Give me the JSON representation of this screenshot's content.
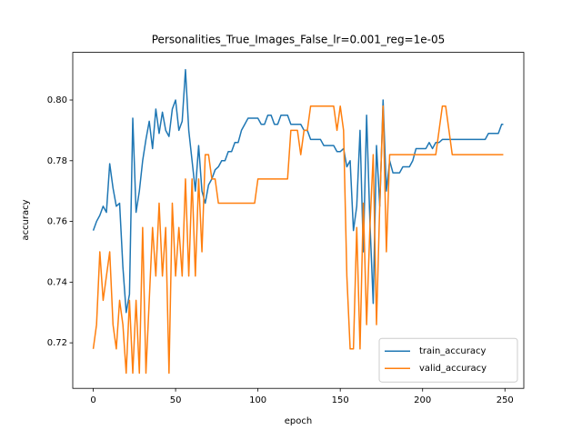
{
  "chart_data": {
    "type": "line",
    "title": "Personalities_True_Images_False_lr=0.001_reg=1e-05",
    "x_label": "epoch",
    "y_label": "accuracy",
    "x": [
      0,
      2,
      4,
      6,
      8,
      10,
      12,
      14,
      16,
      18,
      20,
      22,
      24,
      26,
      28,
      30,
      32,
      34,
      36,
      38,
      40,
      42,
      44,
      46,
      48,
      50,
      52,
      54,
      56,
      58,
      60,
      62,
      64,
      66,
      68,
      70,
      72,
      74,
      76,
      78,
      80,
      82,
      84,
      86,
      88,
      90,
      92,
      94,
      96,
      98,
      100,
      102,
      104,
      106,
      108,
      110,
      112,
      114,
      116,
      118,
      120,
      122,
      124,
      126,
      128,
      130,
      132,
      134,
      136,
      138,
      140,
      142,
      144,
      146,
      148,
      150,
      152,
      154,
      156,
      158,
      160,
      162,
      164,
      166,
      168,
      170,
      172,
      174,
      176,
      178,
      180,
      182,
      184,
      186,
      188,
      190,
      192,
      194,
      196,
      198,
      200,
      202,
      204,
      206,
      208,
      210,
      212,
      214,
      216,
      218,
      220,
      222,
      224,
      226,
      228,
      230,
      232,
      234,
      236,
      238,
      240,
      242,
      244,
      246,
      248,
      249
    ],
    "series": [
      {
        "name": "train_accuracy",
        "color": "#1f77b4",
        "values": [
          0.757,
          0.76,
          0.762,
          0.765,
          0.763,
          0.779,
          0.771,
          0.765,
          0.766,
          0.745,
          0.73,
          0.736,
          0.794,
          0.763,
          0.77,
          0.78,
          0.787,
          0.793,
          0.784,
          0.797,
          0.789,
          0.796,
          0.79,
          0.788,
          0.797,
          0.8,
          0.79,
          0.793,
          0.81,
          0.79,
          0.78,
          0.77,
          0.785,
          0.77,
          0.766,
          0.772,
          0.774,
          0.777,
          0.778,
          0.78,
          0.78,
          0.783,
          0.783,
          0.786,
          0.786,
          0.79,
          0.792,
          0.794,
          0.794,
          0.794,
          0.794,
          0.792,
          0.792,
          0.795,
          0.795,
          0.792,
          0.792,
          0.795,
          0.795,
          0.795,
          0.792,
          0.792,
          0.792,
          0.792,
          0.79,
          0.79,
          0.787,
          0.787,
          0.787,
          0.787,
          0.785,
          0.785,
          0.785,
          0.785,
          0.783,
          0.783,
          0.784,
          0.778,
          0.78,
          0.757,
          0.765,
          0.79,
          0.75,
          0.795,
          0.76,
          0.733,
          0.785,
          0.765,
          0.8,
          0.77,
          0.78,
          0.776,
          0.776,
          0.776,
          0.778,
          0.778,
          0.778,
          0.78,
          0.784,
          0.784,
          0.784,
          0.784,
          0.786,
          0.784,
          0.786,
          0.786,
          0.787,
          0.787,
          0.787,
          0.787,
          0.787,
          0.787,
          0.787,
          0.787,
          0.787,
          0.787,
          0.787,
          0.787,
          0.787,
          0.787,
          0.789,
          0.789,
          0.789,
          0.789,
          0.792,
          0.792
        ]
      },
      {
        "name": "valid_accuracy",
        "color": "#ff7f0e",
        "values": [
          0.718,
          0.726,
          0.75,
          0.734,
          0.742,
          0.75,
          0.726,
          0.718,
          0.734,
          0.726,
          0.71,
          0.734,
          0.71,
          0.734,
          0.71,
          0.758,
          0.71,
          0.734,
          0.758,
          0.742,
          0.766,
          0.742,
          0.758,
          0.71,
          0.766,
          0.742,
          0.758,
          0.742,
          0.774,
          0.742,
          0.774,
          0.742,
          0.774,
          0.75,
          0.782,
          0.782,
          0.774,
          0.774,
          0.766,
          0.766,
          0.766,
          0.766,
          0.766,
          0.766,
          0.766,
          0.766,
          0.766,
          0.766,
          0.766,
          0.766,
          0.774,
          0.774,
          0.774,
          0.774,
          0.774,
          0.774,
          0.774,
          0.774,
          0.774,
          0.774,
          0.79,
          0.79,
          0.79,
          0.782,
          0.79,
          0.79,
          0.798,
          0.798,
          0.798,
          0.798,
          0.798,
          0.798,
          0.798,
          0.798,
          0.79,
          0.798,
          0.79,
          0.742,
          0.718,
          0.718,
          0.758,
          0.718,
          0.766,
          0.726,
          0.758,
          0.782,
          0.726,
          0.766,
          0.798,
          0.75,
          0.782,
          0.782,
          0.782,
          0.782,
          0.782,
          0.782,
          0.782,
          0.782,
          0.782,
          0.782,
          0.782,
          0.782,
          0.782,
          0.782,
          0.782,
          0.79,
          0.798,
          0.798,
          0.79,
          0.782,
          0.782,
          0.782,
          0.782,
          0.782,
          0.782,
          0.782,
          0.782,
          0.782,
          0.782,
          0.782,
          0.782,
          0.782,
          0.782,
          0.782,
          0.782,
          0.782
        ]
      }
    ],
    "xlim": [
      -12.45,
      261.45
    ],
    "xticks": [
      0,
      50,
      100,
      150,
      200,
      250
    ],
    "ylim": [
      0.705,
      0.8157
    ],
    "yticks": [
      0.72,
      0.74,
      0.76,
      0.78,
      {
        "value": 0.8,
        "label": "0.80"
      }
    ],
    "grid": false,
    "legend": "lower right"
  }
}
